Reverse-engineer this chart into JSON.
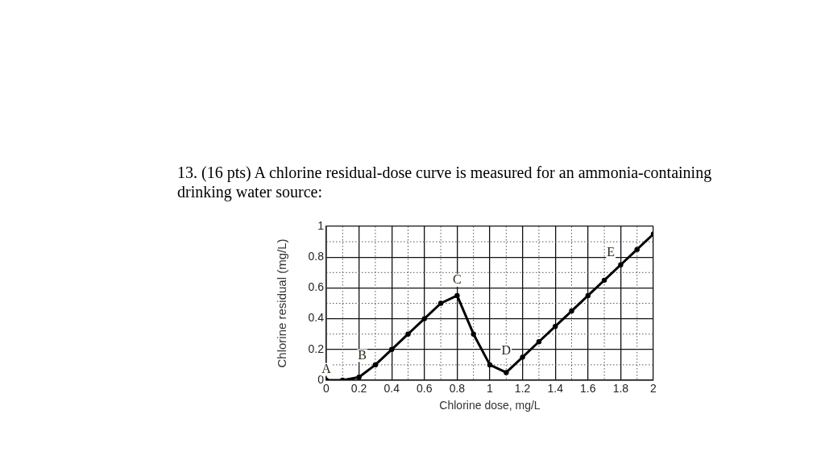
{
  "chart_data": {
    "type": "line",
    "title": "13. (16 pts) A chlorine residual-dose curve is measured for an ammonia-containing drinking water source:",
    "xlabel": "Chlorine dose, mg/L",
    "ylabel": "Chlorine residual (mg/L)",
    "x": [
      0,
      0.1,
      0.2,
      0.3,
      0.4,
      0.5,
      0.6,
      0.7,
      0.8,
      0.9,
      1,
      1.1,
      1.2,
      1.3,
      1.4,
      1.5,
      1.6,
      1.7,
      1.8,
      1.9,
      2
    ],
    "series": [
      {
        "color": "#000000",
        "values": [
          0,
          0,
          0.02,
          0.1,
          0.2,
          0.3,
          0.4,
          0.5,
          0.55,
          0.3,
          0.1,
          0.05,
          0.15,
          0.25,
          0.35,
          0.45,
          0.55,
          0.65,
          0.75,
          0.85,
          0.95
        ]
      }
    ],
    "xlim": [
      0,
      2
    ],
    "ylim": [
      0,
      1
    ],
    "xticks": [
      0,
      {
        "value": 0.1,
        "label": null
      },
      0.2,
      {
        "value": 0.3,
        "label": null
      },
      0.4,
      {
        "value": 0.5,
        "label": null
      },
      0.6,
      {
        "value": 0.7,
        "label": null
      },
      0.8,
      {
        "value": 0.9,
        "label": null
      },
      1,
      {
        "value": 1.1,
        "label": null
      },
      1.2,
      {
        "value": 1.3,
        "label": null
      },
      1.4,
      {
        "value": 1.5,
        "label": null
      },
      1.6,
      {
        "value": 1.7,
        "label": null
      },
      1.8,
      {
        "value": 1.9,
        "label": null
      },
      2
    ],
    "yticks": [
      0,
      {
        "value": 0.1,
        "label": null
      },
      0.2,
      {
        "value": 0.3,
        "label": null
      },
      0.4,
      {
        "value": 0.5,
        "label": null
      },
      0.6,
      {
        "value": 0.7,
        "label": null
      },
      0.8,
      {
        "value": 0.9,
        "label": null
      },
      1
    ],
    "grid": true,
    "marker": "circle",
    "line_style": "solid",
    "annotations": [
      {
        "text": "A",
        "x": 0,
        "y": 0.07
      },
      {
        "text": "B",
        "x": 0.22,
        "y": 0.16
      },
      {
        "text": "C",
        "x": 0.8,
        "y": 0.65
      },
      {
        "text": "D",
        "x": 1.1,
        "y": 0.19
      },
      {
        "text": "E",
        "x": 1.74,
        "y": 0.83
      }
    ]
  }
}
